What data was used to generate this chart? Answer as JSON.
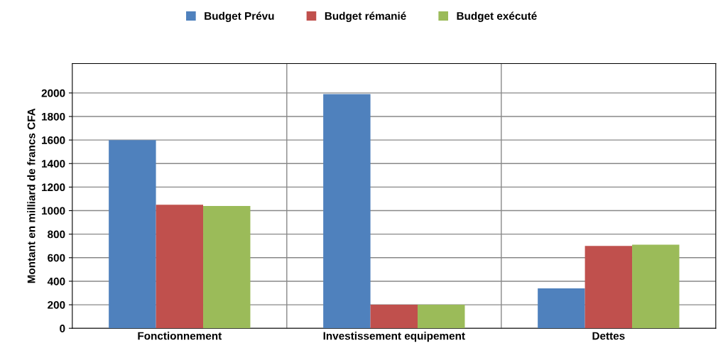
{
  "chart_data": {
    "type": "bar",
    "ylabel": "Montant en milliard de francs CFA",
    "categories": [
      "Fonctionnement",
      "Investissement equipement",
      "Dettes"
    ],
    "series": [
      {
        "name": "Budget Prévu",
        "color": "#4f81bd",
        "values": [
          1600,
          1990,
          340
        ]
      },
      {
        "name": "Budget rémanié",
        "color": "#c0504d",
        "values": [
          1050,
          200,
          700
        ]
      },
      {
        "name": "Budget exécuté",
        "color": "#9bbb59",
        "values": [
          1040,
          200,
          710
        ]
      }
    ],
    "ylim": [
      0,
      2250
    ],
    "yticks": [
      0,
      200,
      400,
      600,
      800,
      1000,
      1200,
      1400,
      1600,
      1800,
      2000
    ],
    "grid": true,
    "legend": "top"
  }
}
